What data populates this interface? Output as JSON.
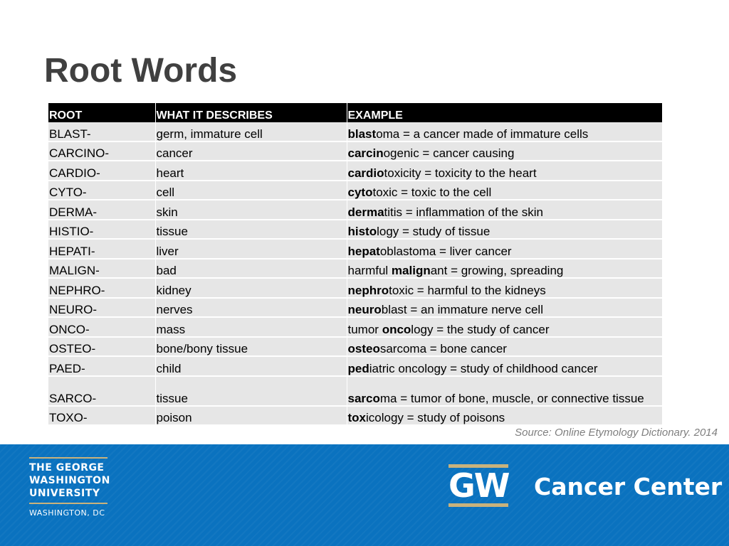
{
  "title": "Root Words",
  "table": {
    "headers": [
      "ROOT",
      "WHAT IT DESCRIBES",
      "EXAMPLE"
    ],
    "rows": [
      {
        "root": "BLAST-",
        "describes": "germ, immature cell",
        "ex_pre": "",
        "ex_bold": "blast",
        "ex_post": "oma = a cancer made of immature cells"
      },
      {
        "root": "CARCINO-",
        "describes": "cancer",
        "ex_pre": "",
        "ex_bold": "carcin",
        "ex_post": "ogenic = cancer causing"
      },
      {
        "root": "CARDIO-",
        "describes": "heart",
        "ex_pre": "",
        "ex_bold": "cardio",
        "ex_post": "toxicity = toxicity to the heart"
      },
      {
        "root": "CYTO-",
        "describes": "cell",
        "ex_pre": "",
        "ex_bold": "cyto",
        "ex_post": "toxic = toxic to the cell"
      },
      {
        "root": "DERMA-",
        "describes": "skin",
        "ex_pre": "",
        "ex_bold": "derma",
        "ex_post": "titis = inflammation of the skin"
      },
      {
        "root": "HISTIO-",
        "describes": "tissue",
        "ex_pre": "",
        "ex_bold": "histo",
        "ex_post": "logy = study of tissue"
      },
      {
        "root": "HEPATI-",
        "describes": "liver",
        "ex_pre": "",
        "ex_bold": "hepat",
        "ex_post": "oblastoma = liver cancer"
      },
      {
        "root": "MALIGN-",
        "describes": "bad",
        "ex_pre": "harmful ",
        "ex_bold": "malign",
        "ex_post": "ant = growing, spreading"
      },
      {
        "root": "NEPHRO-",
        "describes": "kidney",
        "ex_pre": "",
        "ex_bold": "nephro",
        "ex_post": "toxic = harmful to the kidneys"
      },
      {
        "root": "NEURO-",
        "describes": "nerves",
        "ex_pre": "",
        "ex_bold": "neuro",
        "ex_post": "blast = an immature nerve cell"
      },
      {
        "root": "ONCO-",
        "describes": "mass",
        "ex_pre": "tumor ",
        "ex_bold": "onco",
        "ex_post": "logy = the study of cancer"
      },
      {
        "root": "OSTEO-",
        "describes": "bone/bony tissue",
        "ex_pre": "",
        "ex_bold": "osteo",
        "ex_post": "sarcoma = bone cancer"
      },
      {
        "root": "PAED-",
        "describes": "child",
        "ex_pre": "",
        "ex_bold": "ped",
        "ex_post": "iatric oncology = study of childhood cancer"
      },
      {
        "root": "SARCO-",
        "describes": "tissue",
        "ex_pre": "",
        "ex_bold": "sarco",
        "ex_post": "ma = tumor of bone, muscle, or connective tissue"
      },
      {
        "root": "TOXO-",
        "describes": "poison",
        "ex_pre": "",
        "ex_bold": "tox",
        "ex_post": "icology = study of poisons"
      }
    ]
  },
  "source": "Source: Online Etymology Dictionary. 2014",
  "footer": {
    "university": [
      "THE GEORGE",
      "WASHINGTON",
      "UNIVERSITY"
    ],
    "city": "WASHINGTON, DC",
    "logo": "GW",
    "center": "Cancer Center"
  },
  "colors": {
    "footer_bg": "#0a72bf",
    "gold": "#c9b27c",
    "header_bg": "#000000",
    "row_bg": "#e6e6e6"
  }
}
